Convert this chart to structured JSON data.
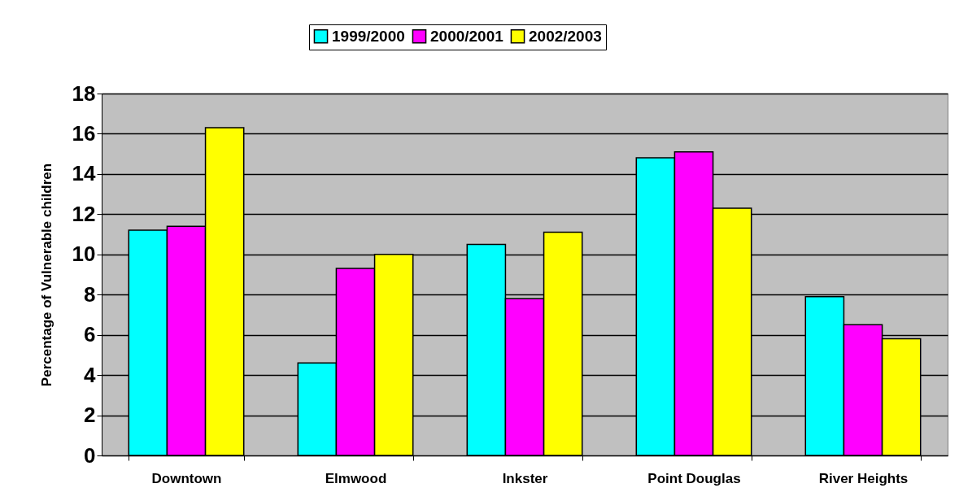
{
  "chart_data": {
    "type": "bar",
    "ylabel": "Percentage of Vulnerable children",
    "categories": [
      "Downtown",
      "Elmwood",
      "Inkster",
      "Point Douglas",
      "River Heights"
    ],
    "series": [
      {
        "name": "1999/2000",
        "color": "#00ffff",
        "values": [
          11.2,
          4.6,
          10.5,
          14.8,
          7.9
        ]
      },
      {
        "name": "2000/2001",
        "color": "#ff00ff",
        "values": [
          11.4,
          9.3,
          7.8,
          15.1,
          6.5
        ]
      },
      {
        "name": "2002/2003",
        "color": "#ffff00",
        "values": [
          16.3,
          10.0,
          11.1,
          12.3,
          5.8
        ]
      }
    ],
    "ylim": [
      0,
      18
    ],
    "yticks": [
      0,
      2,
      4,
      6,
      8,
      10,
      12,
      14,
      16,
      18
    ],
    "grid": "y",
    "legend": "top"
  }
}
